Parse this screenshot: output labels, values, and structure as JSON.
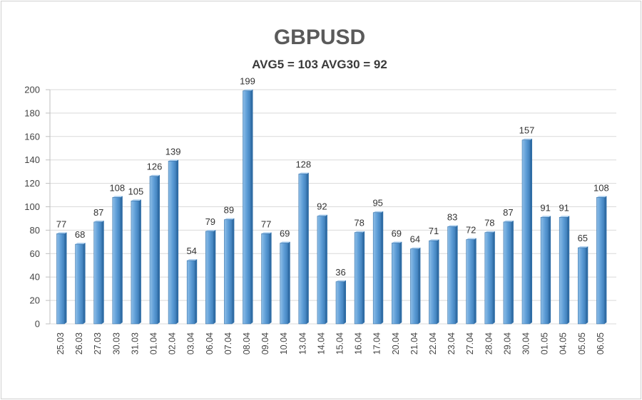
{
  "chart_data": {
    "type": "bar",
    "title": "GBPUSD",
    "subtitle": "AVG5 = 103 AVG30 = 92",
    "xlabel": "",
    "ylabel": "",
    "ylim": [
      0,
      200
    ],
    "yticks": [
      "0",
      "20",
      "40",
      "60",
      "80",
      "100",
      "120",
      "140",
      "160",
      "180",
      "200"
    ],
    "grid": true,
    "categories": [
      "25.03",
      "26.03",
      "27.03",
      "30.03",
      "31.03",
      "01.04",
      "02.04",
      "03.04",
      "06.04",
      "07.04",
      "08.04",
      "09.04",
      "10.04",
      "13.04",
      "14.04",
      "15.04",
      "16.04",
      "17.04",
      "20.04",
      "21.04",
      "22.04",
      "23.04",
      "27.04",
      "28.04",
      "29.04",
      "30.04",
      "01.05",
      "04.05",
      "05.05",
      "06.05"
    ],
    "values": [
      77,
      68,
      87,
      108,
      105,
      126,
      139,
      54,
      79,
      89,
      199,
      77,
      69,
      128,
      92,
      36,
      78,
      95,
      69,
      64,
      71,
      83,
      72,
      78,
      87,
      157,
      91,
      91,
      65,
      108
    ],
    "colors": {
      "bar": "#5b9bd5",
      "bar_dark": "#3f7fba",
      "bar_light": "#8fbfe8",
      "grid": "#d9d9d9"
    }
  }
}
